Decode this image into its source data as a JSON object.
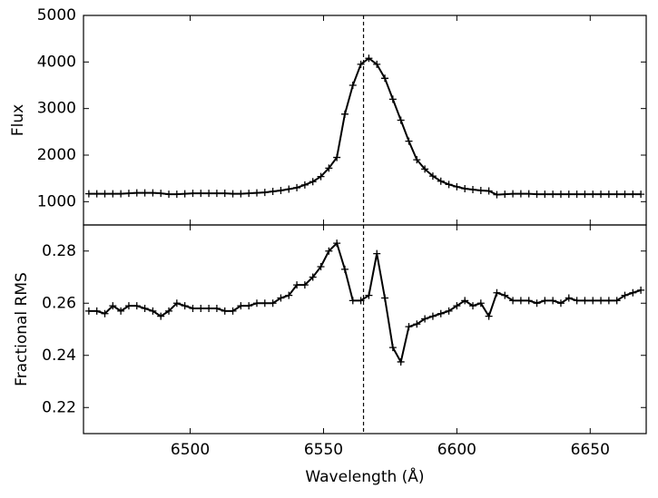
{
  "chart_data": [
    {
      "type": "line",
      "ylabel": "Flux",
      "color": "#000000",
      "marker": "+",
      "x": [
        6462,
        6465,
        6468,
        6471,
        6474,
        6477,
        6480,
        6483,
        6486,
        6489,
        6492,
        6495,
        6498,
        6501,
        6504,
        6507,
        6510,
        6513,
        6516,
        6519,
        6522,
        6525,
        6528,
        6531,
        6534,
        6537,
        6540,
        6543,
        6546,
        6549,
        6552,
        6555,
        6558,
        6561,
        6564,
        6567,
        6570,
        6573,
        6576,
        6579,
        6582,
        6585,
        6588,
        6591,
        6594,
        6597,
        6600,
        6603,
        6606,
        6609,
        6612,
        6615,
        6618,
        6621,
        6624,
        6627,
        6630,
        6633,
        6636,
        6639,
        6642,
        6645,
        6648,
        6651,
        6654,
        6657,
        6660,
        6663,
        6666,
        6669
      ],
      "values": [
        1170,
        1170,
        1170,
        1170,
        1170,
        1180,
        1190,
        1190,
        1190,
        1180,
        1160,
        1160,
        1170,
        1180,
        1180,
        1180,
        1180,
        1180,
        1170,
        1170,
        1180,
        1190,
        1200,
        1220,
        1240,
        1270,
        1300,
        1360,
        1430,
        1540,
        1720,
        1950,
        2880,
        3500,
        3950,
        4080,
        3950,
        3650,
        3200,
        2750,
        2300,
        1900,
        1700,
        1550,
        1440,
        1370,
        1320,
        1280,
        1260,
        1240,
        1230,
        1150,
        1160,
        1170,
        1170,
        1170,
        1160,
        1160,
        1160,
        1160,
        1160,
        1160,
        1160,
        1160,
        1160,
        1160,
        1160,
        1160,
        1160,
        1160
      ],
      "xlim": [
        6460,
        6671
      ],
      "xticks": [
        6500,
        6550,
        6600,
        6650
      ],
      "ylim": [
        500,
        5000
      ],
      "yticks": [
        1000,
        2000,
        3000,
        4000,
        5000
      ],
      "vline": 6565
    },
    {
      "type": "line",
      "ylabel": "Fractional RMS",
      "xlabel": "Wavelength (Å)",
      "color": "#000000",
      "marker": "+",
      "x": [
        6462,
        6465,
        6468,
        6471,
        6474,
        6477,
        6480,
        6483,
        6486,
        6489,
        6492,
        6495,
        6498,
        6501,
        6504,
        6507,
        6510,
        6513,
        6516,
        6519,
        6522,
        6525,
        6528,
        6531,
        6534,
        6537,
        6540,
        6543,
        6546,
        6549,
        6552,
        6555,
        6558,
        6561,
        6564,
        6567,
        6570,
        6573,
        6576,
        6579,
        6582,
        6585,
        6588,
        6591,
        6594,
        6597,
        6600,
        6603,
        6606,
        6609,
        6612,
        6615,
        6618,
        6621,
        6624,
        6627,
        6630,
        6633,
        6636,
        6639,
        6642,
        6645,
        6648,
        6651,
        6654,
        6657,
        6660,
        6663,
        6666,
        6669
      ],
      "values": [
        0.257,
        0.257,
        0.256,
        0.259,
        0.257,
        0.259,
        0.259,
        0.258,
        0.257,
        0.255,
        0.257,
        0.26,
        0.259,
        0.258,
        0.258,
        0.258,
        0.258,
        0.257,
        0.257,
        0.259,
        0.259,
        0.26,
        0.26,
        0.26,
        0.262,
        0.263,
        0.267,
        0.267,
        0.27,
        0.274,
        0.28,
        0.283,
        0.273,
        0.261,
        0.261,
        0.263,
        0.279,
        0.262,
        0.243,
        0.2375,
        0.251,
        0.252,
        0.254,
        0.255,
        0.256,
        0.257,
        0.259,
        0.261,
        0.259,
        0.26,
        0.255,
        0.264,
        0.263,
        0.261,
        0.261,
        0.261,
        0.26,
        0.261,
        0.261,
        0.26,
        0.262,
        0.261,
        0.261,
        0.261,
        0.261,
        0.261,
        0.261,
        0.263,
        0.264,
        0.265
      ],
      "xlim": [
        6460,
        6671
      ],
      "xticks": [
        6500,
        6550,
        6600,
        6650
      ],
      "ylim": [
        0.21,
        0.29
      ],
      "yticks": [
        0.22,
        0.24,
        0.26,
        0.28
      ],
      "vline": 6565
    }
  ]
}
